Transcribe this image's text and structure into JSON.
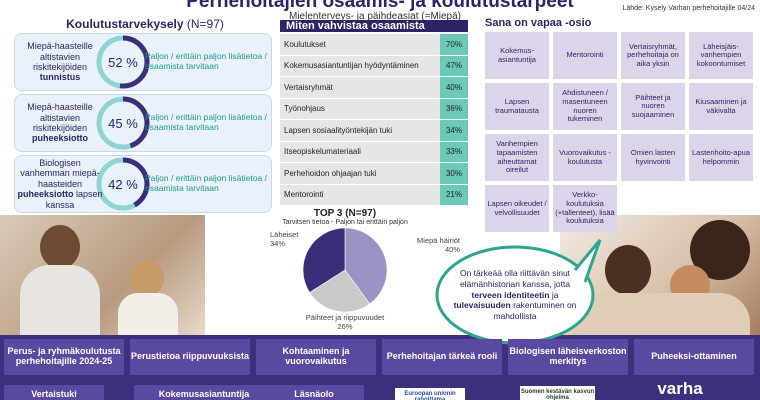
{
  "header": {
    "title": "Perhehoitajien osaamis- ja koulutustarpeet",
    "subtitle": "Mielenterveys- ja päihdeasiat (=Miepä)",
    "source": "Lähde: Kysely Varhan perhehoitajille 04/24"
  },
  "survey": {
    "title": "Koulutustarvekysely",
    "n": "(N=97)",
    "items": [
      {
        "text": "Miepä-haasteille altistavien riskitekijöiden",
        "bold": "tunnistus",
        "value": 52,
        "value_label": "52 %",
        "note": "Paljon / erittäin paljon lisätietoa / osaamista tarvitaan"
      },
      {
        "text": "Miepä-haasteille altistavien riskitekijöiden",
        "bold": "puheeksiotto",
        "value": 45,
        "value_label": "45 %",
        "note": "Paljon / erittäin paljon lisätietoa / osaamista tarvitaan"
      },
      {
        "text": "Biologisen vanhemman miepä-haasteiden",
        "bold": "puheeksiotto",
        "tail": "lapsen kanssa",
        "value": 42,
        "value_label": "42 %",
        "note": "Paljon / erittäin paljon lisätietoa / osaamista tarvitaan"
      }
    ]
  },
  "methods": {
    "title": "Miten vahvistaa osaamista",
    "rows": [
      [
        "Koulutukset",
        "70%"
      ],
      [
        "Kokemusasiantuntijan hyödyntäminen",
        "47%"
      ],
      [
        "Vertaisryhmät",
        "40%"
      ],
      [
        "Työnohjaus",
        "36%"
      ],
      [
        "Lapsen sosiaalityöntekijän tuki",
        "34%"
      ],
      [
        "Itseopiskelumateriaali",
        "33%"
      ],
      [
        "Perhehoidon ohjaajan tuki",
        "30%"
      ],
      [
        "Mentorointi",
        "21%"
      ]
    ]
  },
  "pie": {
    "type": "pie",
    "title": "TOP 3 (N=97)",
    "subtitle": "Tarvitsen tietoa - Paljon tai erittäin paljon",
    "slices": [
      {
        "label": "Miepä häiriöt",
        "value": 40,
        "value_label": "40%",
        "color": "#9d92c4"
      },
      {
        "label": "Päihteet ja riippuvuudet",
        "value": 26,
        "value_label": "26%",
        "color": "#c9c9c9"
      },
      {
        "label": "Läheiset",
        "value": 34,
        "value_label": "34%",
        "color": "#3b2d78"
      }
    ]
  },
  "free_text": {
    "title": "Sana on vapaa -osio",
    "boxes": [
      "Kokemus-asiantuntija",
      "Mentorointi",
      "Vertaisryhmät, perhehoitaja on aika yksin",
      "Läheisjäis-vanhempien kokoontumiset",
      "Lapsen traumatausta",
      "Ahdistuneen / masentuneen nuoren tukeminen",
      "Päihteet ja nuoren suojaaminen",
      "Kiusaaminen ja väkivalta",
      "Vanhempien tapaamisten aiheuttamat oireilut",
      "Vuorovaikutus -koulutusta",
      "Omien lasten hyvinvointi",
      "Lastenhoito-apua helpommin",
      "Lapsen oikeudet / velvollisuudet",
      "Verkko-koulutuksia (+tallenteet), lisää koulutuksia"
    ]
  },
  "quote": {
    "parts": [
      {
        "text": "On tärkeää olla riittävän sinut elämänhistorian kanssa, jotta"
      },
      {
        "text": "terveen identiteetin",
        "bold": true
      },
      {
        "text": "ja"
      },
      {
        "text": "tulevaisuuden",
        "bold": true
      },
      {
        "text": "rakentuminen on mahdollista"
      }
    ]
  },
  "banner": {
    "top": [
      "Perus- ja ryhmäkoulutusta perhehoitajille 2024-25",
      "Perustietoa riippuvuuksista",
      "Kohtaaminen ja vuorovaikutus",
      "Perhehoitajan tärkeä rooli",
      "Biologisen läheisverkoston merkitys",
      "Puheeksi-ottaminen"
    ],
    "bottom": [
      "Vertaistuki",
      "Kokemusasiantuntija",
      "Läsnäolo"
    ],
    "logos": [
      "Euroopan unionin rahoittama",
      "Suomen kestävän kasvun ohjelma",
      "varha"
    ]
  }
}
